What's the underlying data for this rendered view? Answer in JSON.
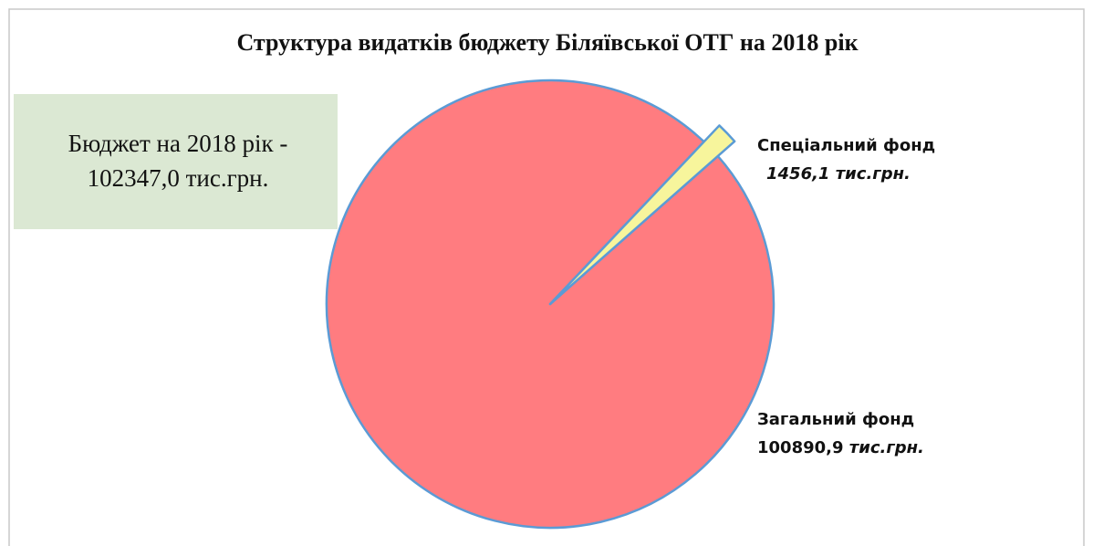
{
  "chart_data": {
    "type": "pie",
    "title": "Структура видатків бюджету Біляївської ОТГ на 2018 рік",
    "annotation": [
      "Бюджет на 2018 рік -",
      "102347,0  тис.грн."
    ],
    "categories": [
      "Загальний фонд",
      "Спеціальний фонд"
    ],
    "values": [
      100890.9,
      1456.1
    ],
    "value_labels": [
      "100890,9 тис.грн.",
      "1456,1 тис.грн."
    ],
    "colors": [
      "#ff7c80",
      "#f7f59c"
    ],
    "edge_color": "#5b9bd5"
  }
}
